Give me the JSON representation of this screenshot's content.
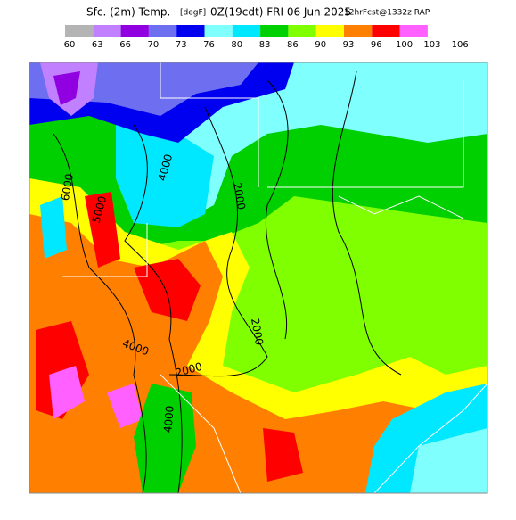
{
  "header": {
    "title_main": "Sfc. (2m) Temp.",
    "units": "[degF]",
    "valid": "0Z(19cdt) FRI 06 Jun 2025",
    "forecast": "12hrFcst@1332z RAP"
  },
  "legend": {
    "labels": [
      60,
      63,
      66,
      70,
      73,
      76,
      80,
      83,
      86,
      90,
      93,
      96,
      100,
      103,
      106
    ],
    "colors": [
      "#b4b4b4",
      "#c080ff",
      "#9000e0",
      "#6e6ef0",
      "#0000f0",
      "#80ffff",
      "#00e8ff",
      "#00d000",
      "#80ff00",
      "#ffff00",
      "#ff8000",
      "#ff0000",
      "#ff60ff"
    ]
  },
  "map": {
    "contour_labels": [
      "6000",
      "5000",
      "4000",
      "2000",
      "2000",
      "2000",
      "4000",
      "4000"
    ]
  }
}
